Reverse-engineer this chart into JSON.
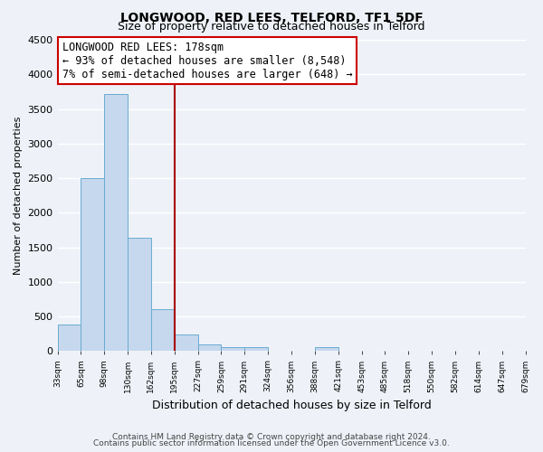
{
  "title": "LONGWOOD, RED LEES, TELFORD, TF1 5DF",
  "subtitle": "Size of property relative to detached houses in Telford",
  "xlabel": "Distribution of detached houses by size in Telford",
  "ylabel": "Number of detached properties",
  "bar_values": [
    380,
    2500,
    3720,
    1640,
    600,
    240,
    100,
    55,
    55,
    0,
    0,
    55,
    0,
    0,
    0,
    0,
    0,
    0,
    0,
    0
  ],
  "bar_labels": [
    "33sqm",
    "65sqm",
    "98sqm",
    "130sqm",
    "162sqm",
    "195sqm",
    "227sqm",
    "259sqm",
    "291sqm",
    "324sqm",
    "356sqm",
    "388sqm",
    "421sqm",
    "453sqm",
    "485sqm",
    "518sqm",
    "550sqm",
    "582sqm",
    "614sqm",
    "647sqm",
    "679sqm"
  ],
  "bar_color": "#c5d8ed",
  "bar_edge_color": "#6aabd2",
  "annotation_title": "LONGWOOD RED LEES: 178sqm",
  "annotation_line1": "← 93% of detached houses are smaller (8,548)",
  "annotation_line2": "7% of semi-detached houses are larger (648) →",
  "annotation_box_color": "#ffffff",
  "annotation_box_edge_color": "#cc0000",
  "vline_color": "#aa0000",
  "ylim": [
    0,
    4500
  ],
  "yticks": [
    0,
    500,
    1000,
    1500,
    2000,
    2500,
    3000,
    3500,
    4000,
    4500
  ],
  "footnote1": "Contains HM Land Registry data © Crown copyright and database right 2024.",
  "footnote2": "Contains public sector information licensed under the Open Government Licence v3.0.",
  "background_color": "#eef2f8",
  "grid_color": "#ffffff",
  "title_fontsize": 10,
  "subtitle_fontsize": 9
}
